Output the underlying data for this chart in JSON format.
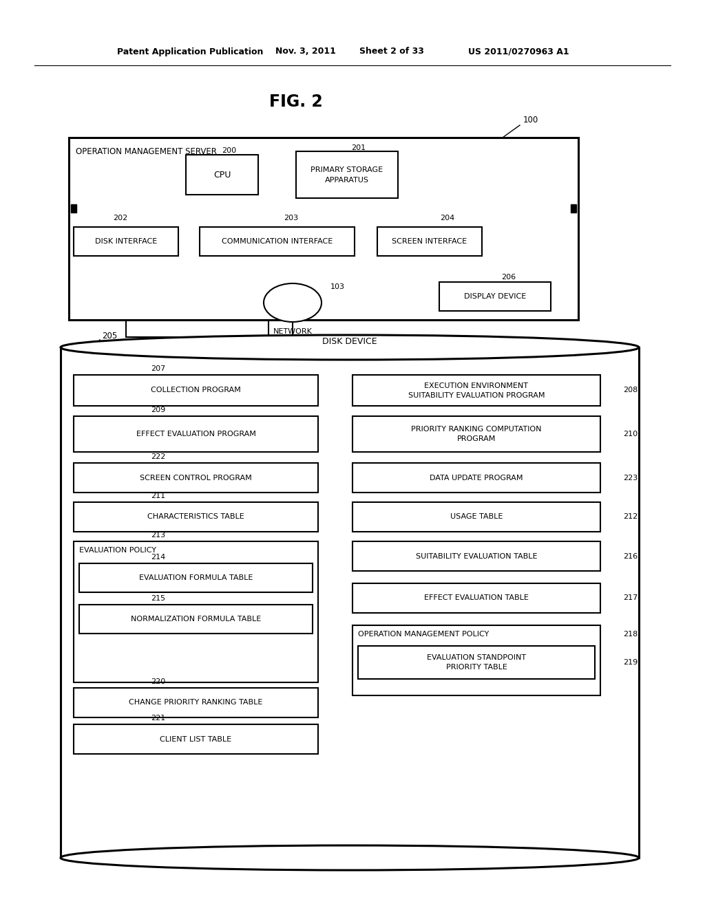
{
  "bg_color": "#ffffff",
  "header_text": "Patent Application Publication",
  "header_date": "Nov. 3, 2011",
  "header_sheet": "Sheet 2 of 33",
  "header_patent": "US 2011/0270963 A1",
  "fig_title": "FIG. 2",
  "label_100": "100",
  "label_200": "200",
  "label_201": "201",
  "label_202": "202",
  "label_203": "203",
  "label_204": "204",
  "label_205": "205",
  "label_206": "206",
  "label_103": "103",
  "label_207": "207",
  "label_208": "208",
  "label_209": "209",
  "label_210": "210",
  "label_211": "211",
  "label_212": "212",
  "label_213": "213",
  "label_214": "214",
  "label_215": "215",
  "label_216": "216",
  "label_217": "217",
  "label_218": "218",
  "label_219": "219",
  "label_220": "220",
  "label_221": "221",
  "label_222": "222",
  "label_223": "223"
}
